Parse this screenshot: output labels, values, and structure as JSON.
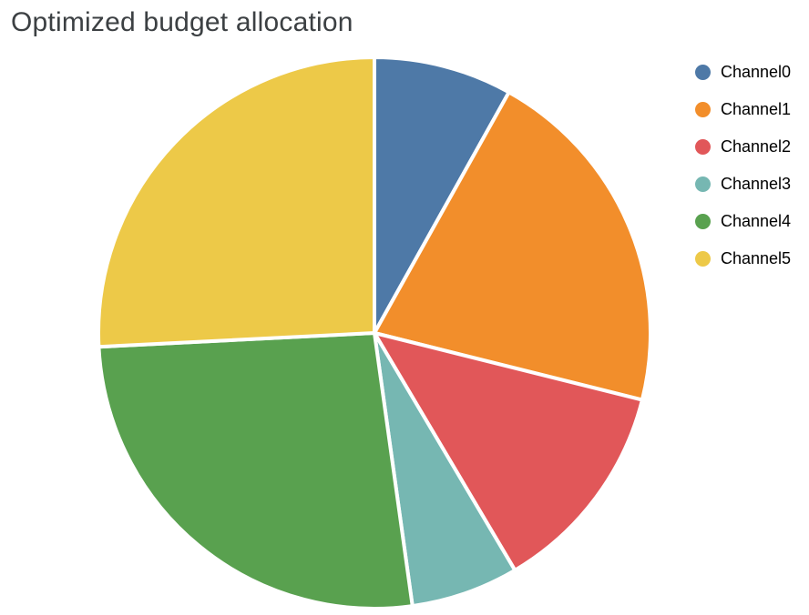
{
  "page": {
    "background": "#ffffff"
  },
  "chart_data": {
    "type": "pie",
    "title": "Optimized budget allocation",
    "title_color": "#3c4043",
    "categories": [
      "Channel0",
      "Channel1",
      "Channel2",
      "Channel3",
      "Channel4",
      "Channel5"
    ],
    "values": [
      8.1,
      20.8,
      12.6,
      6.3,
      26.4,
      25.8
    ],
    "unit": "percent",
    "colors": [
      "#4E79A7",
      "#F28E2B",
      "#E15759",
      "#76B7B2",
      "#59A14F",
      "#EDC948"
    ],
    "start_angle_deg": 0,
    "direction": "clockwise",
    "slice_border_color": "#ffffff",
    "legend_position": "right",
    "grid": false
  },
  "legend": {
    "items": [
      {
        "label": "Channel0",
        "color": "#4E79A7"
      },
      {
        "label": "Channel1",
        "color": "#F28E2B"
      },
      {
        "label": "Channel2",
        "color": "#E15759"
      },
      {
        "label": "Channel3",
        "color": "#76B7B2"
      },
      {
        "label": "Channel4",
        "color": "#59A14F"
      },
      {
        "label": "Channel5",
        "color": "#EDC948"
      }
    ]
  }
}
